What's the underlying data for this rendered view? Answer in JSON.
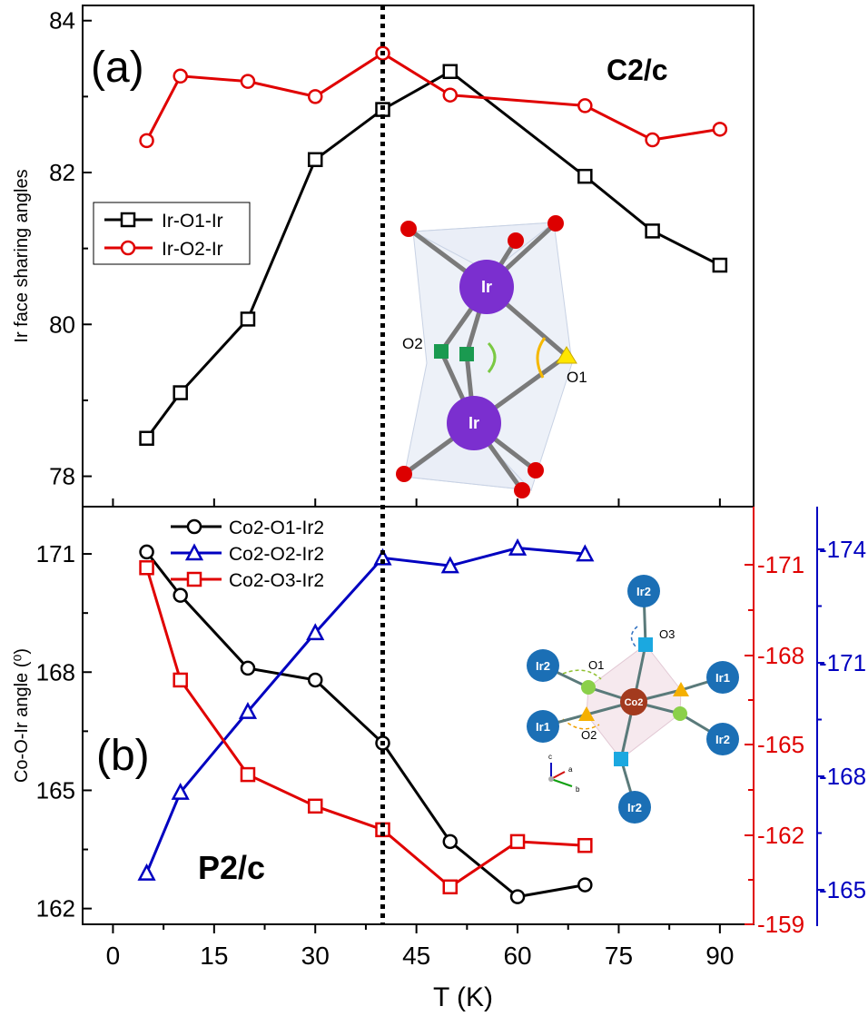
{
  "chart_data": [
    {
      "id": "a",
      "type": "line",
      "panel_label": "(a)",
      "space_group": "C2/c",
      "ylabel": "Ir face sharing angles",
      "xlim": [
        -4.5,
        95
      ],
      "ylim": [
        77.6,
        84.2
      ],
      "yticks": [
        78,
        80,
        82,
        84
      ],
      "legend": "top-left",
      "series": [
        {
          "name": "Ir-O1-Ir",
          "marker": "square",
          "color": "#000000",
          "x": [
            5,
            10,
            20,
            30,
            40,
            50,
            70,
            80,
            90
          ],
          "y": [
            78.5,
            79.1,
            80.07,
            82.17,
            82.83,
            83.33,
            81.95,
            81.23,
            80.78
          ]
        },
        {
          "name": "Ir-O2-Ir",
          "marker": "circle",
          "color": "#e00000",
          "x": [
            5,
            10,
            20,
            30,
            40,
            50,
            70,
            80,
            90
          ],
          "y": [
            82.42,
            83.27,
            83.2,
            83.0,
            83.57,
            83.02,
            82.88,
            82.43,
            82.57
          ]
        }
      ],
      "inset": {
        "atoms": {
          "ir": "Ir",
          "o2": "O2",
          "o1": "O1"
        }
      }
    },
    {
      "id": "b",
      "type": "line",
      "panel_label": "(b)",
      "space_group": "P2/c",
      "ylabel": "Co-O-Ir angle (⁰)",
      "xlabel": "T (K)",
      "xlim": [
        -4.5,
        95
      ],
      "ylim": [
        161.6,
        172.2
      ],
      "yticks": [
        162,
        165,
        168,
        171
      ],
      "xticks": [
        0,
        15,
        30,
        45,
        60,
        75,
        90
      ],
      "right_axis_red": {
        "ticks": [
          "-159",
          "-162",
          "-165",
          "-168",
          "-171"
        ],
        "color": "#e00000"
      },
      "right_axis_blue": {
        "ticks": [
          "-165",
          "-168",
          "-171",
          "-174"
        ],
        "color": "#0000c0"
      },
      "legend": "top-center",
      "series": [
        {
          "name": "Co2-O1-Ir2",
          "marker": "circle",
          "color": "#000000",
          "x": [
            5,
            10,
            20,
            30,
            40,
            50,
            60,
            70
          ],
          "y": [
            171.05,
            169.95,
            168.1,
            167.8,
            166.2,
            163.7,
            162.3,
            162.6
          ]
        },
        {
          "name": "Co2-O2-Ir2",
          "marker": "triangle",
          "color": "#0000c0",
          "x": [
            5,
            10,
            20,
            30,
            40,
            50,
            60,
            70
          ],
          "y": [
            162.9,
            164.95,
            167.0,
            169.0,
            170.9,
            170.7,
            171.15,
            171.0
          ]
        },
        {
          "name": "Co2-O3-Ir2",
          "marker": "square",
          "color": "#e00000",
          "x": [
            5,
            10,
            20,
            30,
            40,
            50,
            60,
            70
          ],
          "y": [
            170.65,
            167.8,
            165.4,
            164.6,
            164.0,
            162.55,
            163.7,
            163.6
          ]
        }
      ],
      "inset": {
        "ir2": "Ir2",
        "ir1": "Ir1",
        "co2": "Co2",
        "o1": "O1",
        "o2": "O2",
        "o3": "O3",
        "axes": {
          "c": "c",
          "a": "a",
          "b": "b"
        }
      }
    }
  ],
  "marker_line": {
    "x": 40
  }
}
